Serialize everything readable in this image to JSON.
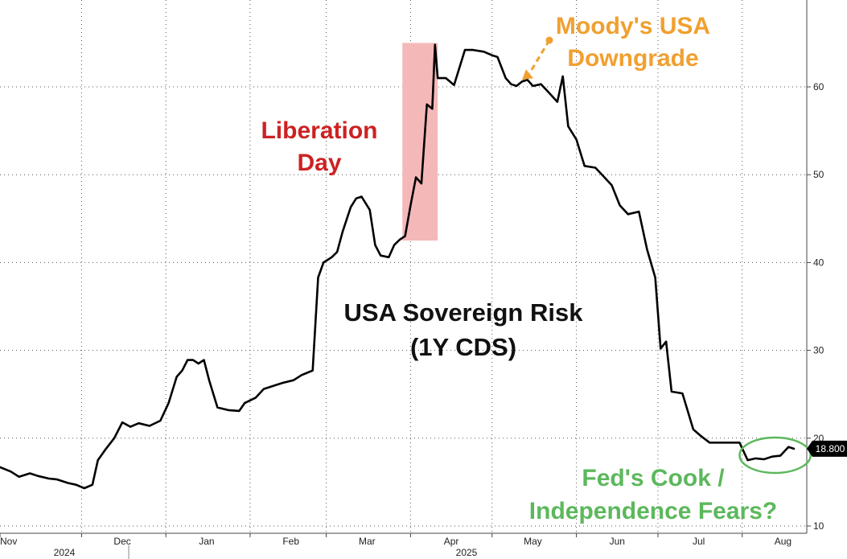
{
  "chart_data": {
    "type": "line",
    "title": "USA Sovereign Risk",
    "subtitle": "(1Y CDS)",
    "xlabel": "",
    "ylabel": "",
    "x_axis": {
      "months": [
        "Nov",
        "Dec",
        "Jan",
        "Feb",
        "Mar",
        "Apr",
        "May",
        "Jun",
        "Jul",
        "Aug"
      ],
      "years": [
        "2024",
        "2025"
      ]
    },
    "y_axis": {
      "ticks": [
        10,
        20,
        30,
        40,
        50,
        60
      ],
      "ylim": [
        10,
        69
      ],
      "position": "right"
    },
    "grid": true,
    "last_value": {
      "label": "18.800",
      "value": 18.8,
      "color": "#000000"
    },
    "series": [
      {
        "name": "",
        "color": "#000000",
        "points": [
          [
            "2024-11-01",
            16.7
          ],
          [
            "2024-11-05",
            16.2
          ],
          [
            "2024-11-08",
            15.6
          ],
          [
            "2024-11-12",
            16.0
          ],
          [
            "2024-11-15",
            15.7
          ],
          [
            "2024-11-19",
            15.4
          ],
          [
            "2024-11-22",
            15.3
          ],
          [
            "2024-11-26",
            14.9
          ],
          [
            "2024-11-29",
            14.7
          ],
          [
            "2024-12-02",
            14.3
          ],
          [
            "2024-12-05",
            14.7
          ],
          [
            "2024-12-07",
            17.5
          ],
          [
            "2024-12-10",
            18.8
          ],
          [
            "2024-12-13",
            20.0
          ],
          [
            "2024-12-16",
            21.8
          ],
          [
            "2024-12-19",
            21.3
          ],
          [
            "2024-12-22",
            21.7
          ],
          [
            "2024-12-26",
            21.4
          ],
          [
            "2024-12-30",
            22.0
          ],
          [
            "2025-01-02",
            24.0
          ],
          [
            "2025-01-05",
            27.0
          ],
          [
            "2025-01-07",
            27.7
          ],
          [
            "2025-01-09",
            28.9
          ],
          [
            "2025-01-11",
            28.9
          ],
          [
            "2025-01-13",
            28.5
          ],
          [
            "2025-01-15",
            28.9
          ],
          [
            "2025-01-17",
            26.5
          ],
          [
            "2025-01-20",
            23.5
          ],
          [
            "2025-01-24",
            23.2
          ],
          [
            "2025-01-28",
            23.1
          ],
          [
            "2025-01-30",
            24.0
          ],
          [
            "2025-02-03",
            24.6
          ],
          [
            "2025-02-06",
            25.6
          ],
          [
            "2025-02-10",
            26.0
          ],
          [
            "2025-02-13",
            26.3
          ],
          [
            "2025-02-17",
            26.6
          ],
          [
            "2025-02-20",
            27.2
          ],
          [
            "2025-02-24",
            27.7
          ],
          [
            "2025-02-26",
            38.3
          ],
          [
            "2025-02-28",
            40.0
          ],
          [
            "2025-03-03",
            40.6
          ],
          [
            "2025-03-05",
            41.2
          ],
          [
            "2025-03-07",
            43.5
          ],
          [
            "2025-03-10",
            46.3
          ],
          [
            "2025-03-12",
            47.3
          ],
          [
            "2025-03-14",
            47.5
          ],
          [
            "2025-03-17",
            46.0
          ],
          [
            "2025-03-19",
            42.0
          ],
          [
            "2025-03-21",
            40.8
          ],
          [
            "2025-03-24",
            40.6
          ],
          [
            "2025-03-26",
            42.0
          ],
          [
            "2025-03-28",
            42.6
          ],
          [
            "2025-03-30",
            43.0
          ],
          [
            "2025-04-01",
            46.5
          ],
          [
            "2025-04-03",
            49.7
          ],
          [
            "2025-04-05",
            49.0
          ],
          [
            "2025-04-07",
            58.0
          ],
          [
            "2025-04-09",
            57.5
          ],
          [
            "2025-04-10",
            64.8
          ],
          [
            "2025-04-11",
            61.0
          ],
          [
            "2025-04-14",
            61.0
          ],
          [
            "2025-04-17",
            60.2
          ],
          [
            "2025-04-21",
            64.2
          ],
          [
            "2025-04-24",
            64.2
          ],
          [
            "2025-04-28",
            64.0
          ],
          [
            "2025-05-01",
            63.6
          ],
          [
            "2025-05-03",
            63.4
          ],
          [
            "2025-05-06",
            61.0
          ],
          [
            "2025-05-08",
            60.3
          ],
          [
            "2025-05-10",
            60.1
          ],
          [
            "2025-05-12",
            60.6
          ],
          [
            "2025-05-14",
            60.8
          ],
          [
            "2025-05-16",
            60.1
          ],
          [
            "2025-05-19",
            60.3
          ],
          [
            "2025-05-22",
            59.3
          ],
          [
            "2025-05-25",
            58.3
          ],
          [
            "2025-05-27",
            61.2
          ],
          [
            "2025-05-29",
            55.5
          ],
          [
            "2025-06-01",
            54.0
          ],
          [
            "2025-06-04",
            51.0
          ],
          [
            "2025-06-08",
            50.8
          ],
          [
            "2025-06-11",
            49.8
          ],
          [
            "2025-06-14",
            48.8
          ],
          [
            "2025-06-17",
            46.5
          ],
          [
            "2025-06-20",
            45.5
          ],
          [
            "2025-06-24",
            45.8
          ],
          [
            "2025-06-27",
            41.5
          ],
          [
            "2025-06-30",
            38.3
          ],
          [
            "2025-07-02",
            30.2
          ],
          [
            "2025-07-04",
            31.0
          ],
          [
            "2025-07-06",
            25.3
          ],
          [
            "2025-07-10",
            25.1
          ],
          [
            "2025-07-14",
            21.0
          ],
          [
            "2025-07-17",
            20.2
          ],
          [
            "2025-07-20",
            19.5
          ],
          [
            "2025-07-24",
            19.5
          ],
          [
            "2025-07-28",
            19.5
          ],
          [
            "2025-07-31",
            19.5
          ],
          [
            "2025-08-03",
            17.5
          ],
          [
            "2025-08-06",
            17.7
          ],
          [
            "2025-08-09",
            17.6
          ],
          [
            "2025-08-12",
            17.9
          ],
          [
            "2025-08-15",
            18.0
          ],
          [
            "2025-08-18",
            19.0
          ],
          [
            "2025-08-20",
            18.8
          ]
        ]
      }
    ],
    "annotations": [
      {
        "label": "Liberation Day",
        "lines": [
          "Liberation",
          "Day"
        ],
        "color": "#cc2222",
        "band": [
          "2025-03-29",
          "2025-04-11"
        ],
        "band_y": [
          42.5,
          65
        ],
        "band_color": "#f5b8b8"
      },
      {
        "label": "Moody's USA Downgrade",
        "lines": [
          "Moody's USA",
          "Downgrade"
        ],
        "color": "#f0a030",
        "arrow_to": [
          "2025-05-12",
          60.8
        ]
      },
      {
        "label": "Fed's Cook / Independence Fears?",
        "lines": [
          "Fed's Cook /",
          "Independence Fears?"
        ],
        "color": "#5cb85c",
        "circle_around": [
          "2025-08-03",
          "2025-08-22"
        ]
      }
    ]
  }
}
